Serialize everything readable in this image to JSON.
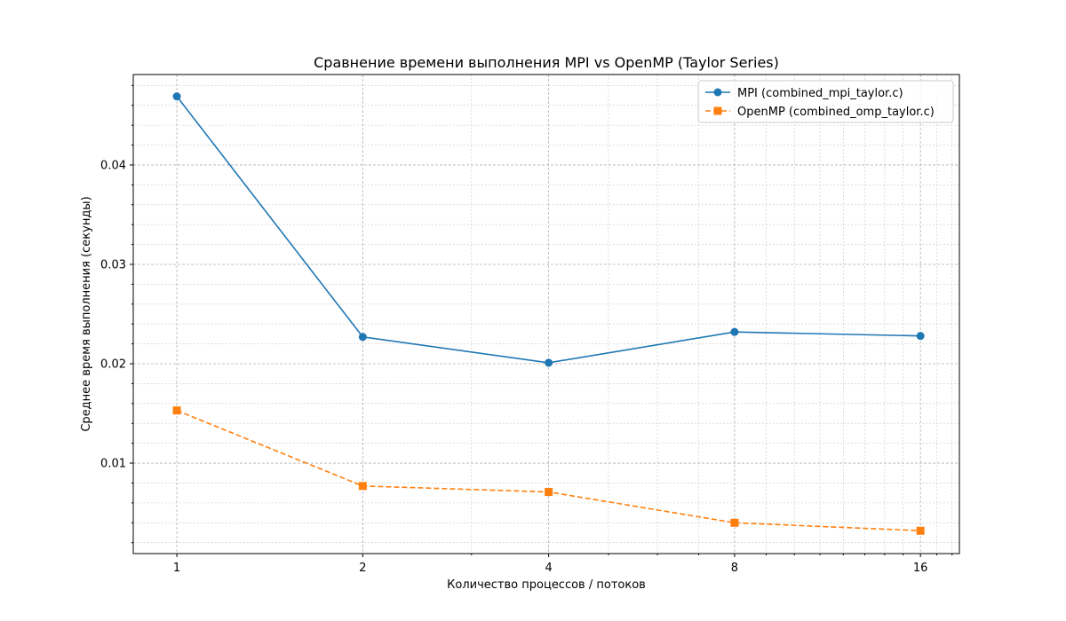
{
  "chart_data": {
    "type": "line",
    "title": "Сравнение времени выполнения MPI vs OpenMP (Taylor Series)",
    "xlabel": "Количество процессов / потоков",
    "ylabel": "Среднее время выполнения (секунды)",
    "x_scale": "log2",
    "xlim": [
      0.85,
      18.5
    ],
    "ylim": [
      0.0009,
      0.0491
    ],
    "x_ticks": [
      1,
      2,
      4,
      8,
      16
    ],
    "x_tick_labels": [
      "1",
      "2",
      "4",
      "8",
      "16"
    ],
    "y_ticks": [
      0.01,
      0.02,
      0.03,
      0.04
    ],
    "y_tick_labels": [
      "0.01",
      "0.02",
      "0.03",
      "0.04"
    ],
    "grid": true,
    "legend_position": "top-right",
    "x": [
      1,
      2,
      4,
      8,
      16
    ],
    "series": [
      {
        "name": "MPI (combined_mpi_taylor.c)",
        "values": [
          0.0469,
          0.0227,
          0.0201,
          0.0232,
          0.0228
        ],
        "color": "#1f77b4",
        "marker": "circle",
        "line_style": "solid"
      },
      {
        "name": "OpenMP (combined_omp_taylor.c)",
        "values": [
          0.0153,
          0.0077,
          0.0071,
          0.004,
          0.0032
        ],
        "color": "#ff7f0e",
        "marker": "square",
        "line_style": "dashed"
      }
    ]
  }
}
